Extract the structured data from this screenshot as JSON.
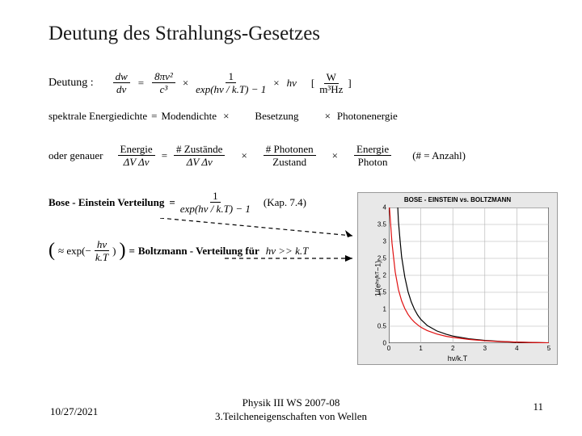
{
  "title": "Deutung des Strahlungs-Gesetzes",
  "line1": {
    "label": "Deutung :",
    "f1_num": "dw",
    "f1_den": "dν",
    "f2_num": "8πν²",
    "f2_den": "c³",
    "f3_num": "1",
    "f3_den": "exp(hν / k.T) − 1",
    "term4": "hν",
    "unit_num": "W",
    "unit_den": "m³Hz"
  },
  "line2": {
    "lhs": "spektrale Energiedichte",
    "t1": "Modendichte",
    "t2": "Besetzung",
    "t3": "Photonenergie"
  },
  "line3": {
    "label": "oder genauer",
    "f1_num": "Energie",
    "f1_den": "ΔV  Δν",
    "f2_num": "# Zustände",
    "f2_den": "ΔV  Δν",
    "f3_num": "# Photonen",
    "f3_den": "Zustand",
    "f4_num": "Energie",
    "f4_den": "Photon",
    "note": "(# = Anzahl)"
  },
  "line4": {
    "lhs": "Bose - Einstein Verteilung",
    "f_num": "1",
    "f_den": "exp(hν / k.T) − 1",
    "note": "(Kap. 7.4)"
  },
  "line5": {
    "approx_num": "hν",
    "approx_den": "k.T",
    "rhs": "Boltzmann - Verteilung für",
    "cond": "hν >> k.T"
  },
  "chart": {
    "title": "BOSE - EINSTEIN vs. BOLTZMANN",
    "xlabel": "hν/k.T",
    "ylabel": "1/(eʰᵛ/ᵏᵀ−1)",
    "xlim": [
      0,
      5
    ],
    "ylim": [
      0,
      4
    ],
    "xticks": [
      0,
      1,
      2,
      3,
      4,
      5
    ],
    "yticks": [
      0,
      0.5,
      1,
      1.5,
      2,
      2.5,
      3,
      3.5,
      4
    ],
    "grid_xticks": [
      0,
      1,
      2,
      3,
      4,
      5
    ],
    "grid_yticks": [
      0.5,
      1,
      1.5,
      2,
      2.5,
      3,
      3.5,
      4
    ],
    "series": [
      {
        "name": "bose-einstein",
        "color": "#000000",
        "width": 1.2,
        "points": [
          [
            0.28,
            4
          ],
          [
            0.3,
            3.6
          ],
          [
            0.35,
            3.05
          ],
          [
            0.4,
            2.55
          ],
          [
            0.5,
            1.95
          ],
          [
            0.6,
            1.52
          ],
          [
            0.7,
            1.22
          ],
          [
            0.8,
            1.0
          ],
          [
            0.9,
            0.83
          ],
          [
            1.0,
            0.7
          ],
          [
            1.2,
            0.52
          ],
          [
            1.5,
            0.36
          ],
          [
            1.8,
            0.26
          ],
          [
            2.0,
            0.21
          ],
          [
            2.5,
            0.13
          ],
          [
            3.0,
            0.08
          ],
          [
            3.5,
            0.05
          ],
          [
            4.0,
            0.03
          ],
          [
            4.5,
            0.02
          ],
          [
            5.0,
            0.01
          ]
        ]
      },
      {
        "name": "boltzmann",
        "color": "#e01010",
        "width": 1.2,
        "points": [
          [
            0.02,
            4
          ],
          [
            0.05,
            3.6
          ],
          [
            0.1,
            2.95
          ],
          [
            0.2,
            2.1
          ],
          [
            0.3,
            1.58
          ],
          [
            0.4,
            1.25
          ],
          [
            0.5,
            1.02
          ],
          [
            0.6,
            0.85
          ],
          [
            0.7,
            0.72
          ],
          [
            0.8,
            0.62
          ],
          [
            0.9,
            0.54
          ],
          [
            1.0,
            0.47
          ],
          [
            1.2,
            0.37
          ],
          [
            1.5,
            0.27
          ],
          [
            1.8,
            0.2
          ],
          [
            2.0,
            0.17
          ],
          [
            2.5,
            0.11
          ],
          [
            3.0,
            0.07
          ],
          [
            3.5,
            0.045
          ],
          [
            4.0,
            0.03
          ],
          [
            4.5,
            0.018
          ],
          [
            5.0,
            0.01
          ]
        ]
      }
    ],
    "bg_color": "#e8e8e8",
    "plot_bg": "#ffffff",
    "grid_color": "#b0b0b0",
    "tick_fontsize": 8,
    "label_fontsize": 9,
    "title_fontsize": 8
  },
  "footer": {
    "date": "10/27/2021",
    "center_line1": "Physik III WS 2007-08",
    "center_line2": "3.Teilcheneigenschaften von Wellen",
    "page": "11"
  },
  "colors": {
    "text": "#000000",
    "bg": "#ffffff"
  }
}
